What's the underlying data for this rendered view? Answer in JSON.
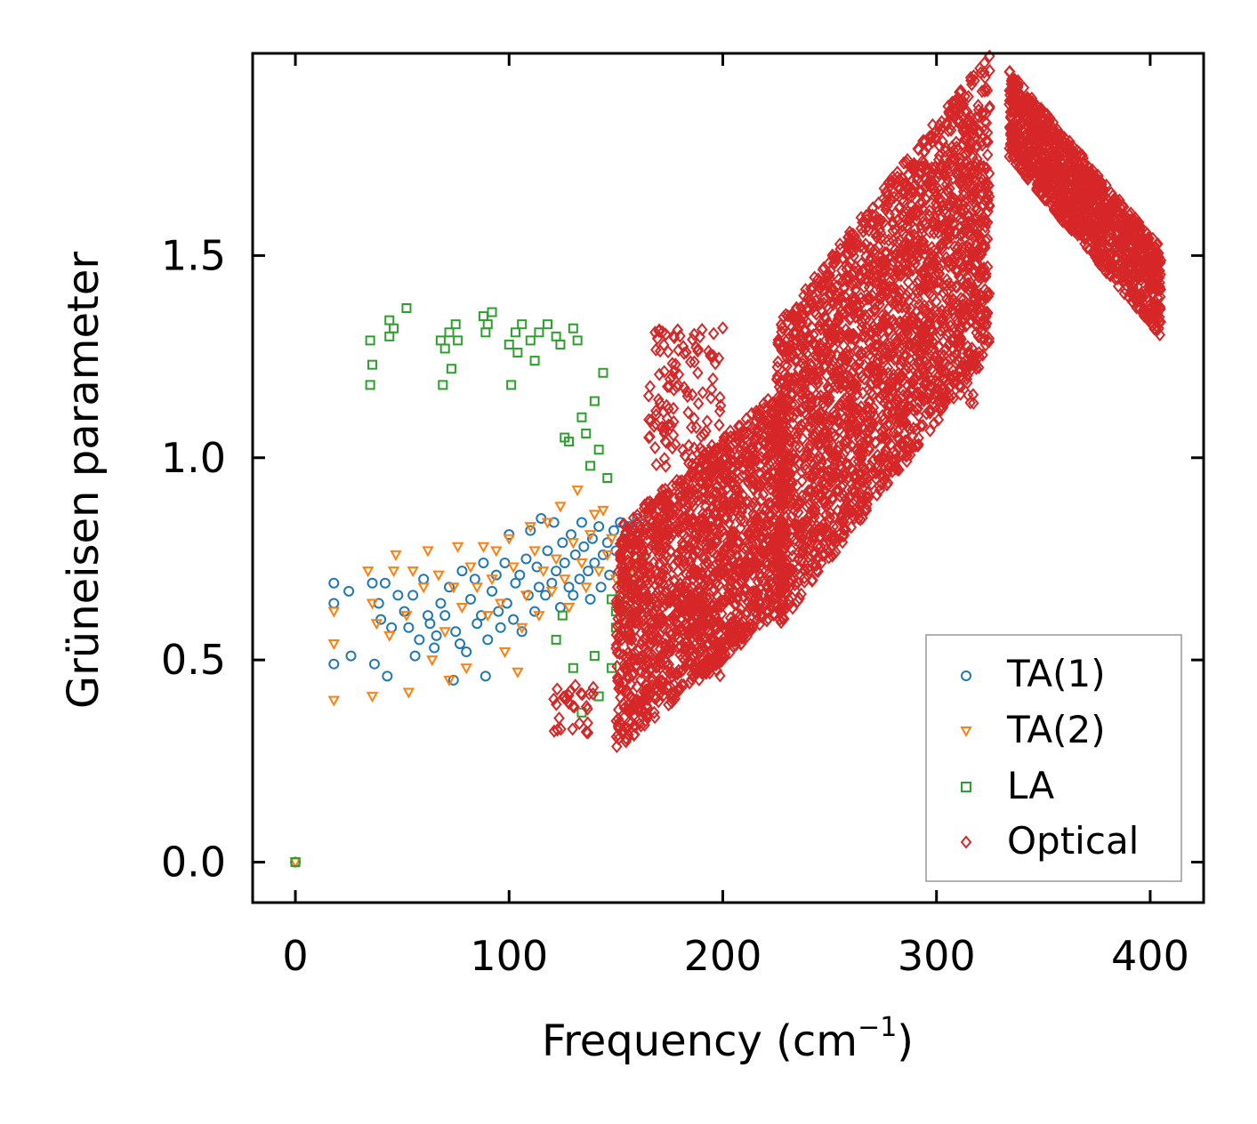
{
  "chart_data": {
    "type": "scatter",
    "xlabel": "Frequency (cm",
    "xlabel_sup": "−1",
    "xlabel_close": ")",
    "ylabel": "Grüneisen parameter",
    "xlim": [
      -20,
      425
    ],
    "ylim": [
      -0.1,
      2.0
    ],
    "xticks": [
      0,
      100,
      200,
      300,
      400
    ],
    "xtick_labels": [
      "0",
      "100",
      "200",
      "300",
      "400"
    ],
    "yticks": [
      0.0,
      0.5,
      1.0,
      1.5
    ],
    "ytick_labels": [
      "0.0",
      "0.5",
      "1.0",
      "1.5"
    ],
    "legend_position": "lower-right",
    "series": [
      {
        "name": "TA(1)",
        "marker": "circle",
        "color": "#1f77b4",
        "points": [
          [
            0,
            0.0
          ],
          [
            18,
            0.69
          ],
          [
            18,
            0.64
          ],
          [
            18,
            0.49
          ],
          [
            25,
            0.67
          ],
          [
            26,
            0.51
          ],
          [
            36,
            0.69
          ],
          [
            37,
            0.49
          ],
          [
            39,
            0.64
          ],
          [
            40,
            0.6
          ],
          [
            42,
            0.69
          ],
          [
            43,
            0.46
          ],
          [
            45,
            0.58
          ],
          [
            48,
            0.66
          ],
          [
            51,
            0.62
          ],
          [
            53,
            0.58
          ],
          [
            55,
            0.66
          ],
          [
            56,
            0.51
          ],
          [
            58,
            0.55
          ],
          [
            60,
            0.7
          ],
          [
            62,
            0.61
          ],
          [
            63,
            0.59
          ],
          [
            65,
            0.53
          ],
          [
            66,
            0.56
          ],
          [
            68,
            0.64
          ],
          [
            70,
            0.61
          ],
          [
            72,
            0.68
          ],
          [
            74,
            0.45
          ],
          [
            75,
            0.57
          ],
          [
            77,
            0.54
          ],
          [
            78,
            0.72
          ],
          [
            80,
            0.52
          ],
          [
            82,
            0.65
          ],
          [
            84,
            0.7
          ],
          [
            85,
            0.59
          ],
          [
            87,
            0.61
          ],
          [
            88,
            0.74
          ],
          [
            89,
            0.46
          ],
          [
            90,
            0.55
          ],
          [
            92,
            0.67
          ],
          [
            94,
            0.71
          ],
          [
            95,
            0.62
          ],
          [
            96,
            0.58
          ],
          [
            98,
            0.74
          ],
          [
            99,
            0.64
          ],
          [
            100,
            0.81
          ],
          [
            102,
            0.6
          ],
          [
            103,
            0.69
          ],
          [
            105,
            0.71
          ],
          [
            106,
            0.57
          ],
          [
            108,
            0.75
          ],
          [
            109,
            0.66
          ],
          [
            110,
            0.82
          ],
          [
            112,
            0.62
          ],
          [
            113,
            0.73
          ],
          [
            114,
            0.68
          ],
          [
            115,
            0.85
          ],
          [
            117,
            0.66
          ],
          [
            118,
            0.77
          ],
          [
            120,
            0.69
          ],
          [
            121,
            0.84
          ],
          [
            122,
            0.72
          ],
          [
            124,
            0.63
          ],
          [
            125,
            0.79
          ],
          [
            126,
            0.74
          ],
          [
            128,
            0.68
          ],
          [
            129,
            0.81
          ],
          [
            130,
            0.66
          ],
          [
            131,
            0.76
          ],
          [
            133,
            0.7
          ],
          [
            134,
            0.84
          ],
          [
            135,
            0.78
          ],
          [
            137,
            0.72
          ],
          [
            138,
            0.65
          ],
          [
            139,
            0.8
          ],
          [
            140,
            0.74
          ],
          [
            142,
            0.83
          ],
          [
            143,
            0.68
          ],
          [
            144,
            0.76
          ],
          [
            146,
            0.79
          ],
          [
            147,
            0.71
          ],
          [
            149,
            0.82
          ],
          [
            150,
            0.77
          ],
          [
            152,
            0.84
          ],
          [
            154,
            0.8
          ],
          [
            156,
            0.83
          ],
          [
            158,
            0.82
          ],
          [
            160,
            0.85
          ]
        ]
      },
      {
        "name": "TA(2)",
        "marker": "triangle-down",
        "color": "#ff7f0e",
        "points": [
          [
            0,
            0.0
          ],
          [
            18,
            0.62
          ],
          [
            18,
            0.54
          ],
          [
            18,
            0.4
          ],
          [
            34,
            0.72
          ],
          [
            36,
            0.64
          ],
          [
            36,
            0.41
          ],
          [
            38,
            0.59
          ],
          [
            44,
            0.56
          ],
          [
            46,
            0.72
          ],
          [
            47,
            0.76
          ],
          [
            52,
            0.61
          ],
          [
            53,
            0.42
          ],
          [
            55,
            0.72
          ],
          [
            60,
            0.68
          ],
          [
            62,
            0.77
          ],
          [
            64,
            0.5
          ],
          [
            67,
            0.71
          ],
          [
            70,
            0.57
          ],
          [
            72,
            0.45
          ],
          [
            74,
            0.68
          ],
          [
            76,
            0.78
          ],
          [
            78,
            0.63
          ],
          [
            80,
            0.48
          ],
          [
            82,
            0.73
          ],
          [
            85,
            0.68
          ],
          [
            88,
            0.78
          ],
          [
            90,
            0.61
          ],
          [
            92,
            0.7
          ],
          [
            94,
            0.77
          ],
          [
            96,
            0.64
          ],
          [
            98,
            0.52
          ],
          [
            100,
            0.8
          ],
          [
            102,
            0.73
          ],
          [
            104,
            0.47
          ],
          [
            106,
            0.58
          ],
          [
            108,
            0.66
          ],
          [
            110,
            0.83
          ],
          [
            112,
            0.77
          ],
          [
            114,
            0.61
          ],
          [
            116,
            0.72
          ],
          [
            118,
            0.84
          ],
          [
            120,
            0.67
          ],
          [
            122,
            0.75
          ],
          [
            124,
            0.88
          ],
          [
            126,
            0.7
          ],
          [
            128,
            0.63
          ],
          [
            130,
            0.79
          ],
          [
            132,
            0.92
          ],
          [
            134,
            0.74
          ],
          [
            136,
            0.68
          ],
          [
            138,
            0.81
          ],
          [
            140,
            0.86
          ],
          [
            142,
            0.72
          ],
          [
            144,
            0.87
          ],
          [
            146,
            0.76
          ],
          [
            148,
            0.8
          ],
          [
            150,
            0.7
          ],
          [
            152,
            0.75
          ],
          [
            154,
            0.78
          ],
          [
            156,
            0.72
          ],
          [
            158,
            0.74
          ],
          [
            160,
            0.71
          ]
        ]
      },
      {
        "name": "LA",
        "marker": "square",
        "color": "#2ca02c",
        "points": [
          [
            0,
            0.0
          ],
          [
            35,
            1.29
          ],
          [
            35,
            1.18
          ],
          [
            36,
            1.23
          ],
          [
            44,
            1.34
          ],
          [
            44,
            1.3
          ],
          [
            46,
            1.32
          ],
          [
            52,
            1.37
          ],
          [
            68,
            1.29
          ],
          [
            69,
            1.18
          ],
          [
            70,
            1.27
          ],
          [
            72,
            1.31
          ],
          [
            73,
            1.22
          ],
          [
            75,
            1.33
          ],
          [
            76,
            1.29
          ],
          [
            88,
            1.35
          ],
          [
            89,
            1.31
          ],
          [
            90,
            1.33
          ],
          [
            92,
            1.36
          ],
          [
            100,
            1.28
          ],
          [
            101,
            1.18
          ],
          [
            103,
            1.31
          ],
          [
            104,
            1.26
          ],
          [
            106,
            1.33
          ],
          [
            110,
            1.29
          ],
          [
            112,
            1.24
          ],
          [
            114,
            1.31
          ],
          [
            118,
            1.33
          ],
          [
            122,
            1.3
          ],
          [
            124,
            1.28
          ],
          [
            126,
            1.05
          ],
          [
            128,
            1.04
          ],
          [
            130,
            1.32
          ],
          [
            132,
            1.29
          ],
          [
            134,
            1.1
          ],
          [
            136,
            1.06
          ],
          [
            138,
            0.98
          ],
          [
            140,
            1.14
          ],
          [
            142,
            1.02
          ],
          [
            144,
            1.21
          ],
          [
            146,
            0.95
          ],
          [
            148,
            0.65
          ],
          [
            150,
            0.58
          ],
          [
            152,
            0.66
          ],
          [
            154,
            0.7
          ],
          [
            156,
            0.62
          ],
          [
            158,
            0.72
          ],
          [
            160,
            0.67
          ],
          [
            162,
            0.75
          ],
          [
            122,
            0.55
          ],
          [
            125,
            0.61
          ],
          [
            130,
            0.48
          ],
          [
            134,
            0.37
          ],
          [
            140,
            0.51
          ],
          [
            142,
            0.41
          ],
          [
            148,
            0.48
          ],
          [
            150,
            0.62
          ]
        ]
      },
      {
        "name": "Optical",
        "marker": "diamond",
        "color": "#d62728",
        "points": []
      }
    ]
  },
  "legend": [
    "TA(1)",
    "TA(2)",
    "LA",
    "Optical"
  ]
}
